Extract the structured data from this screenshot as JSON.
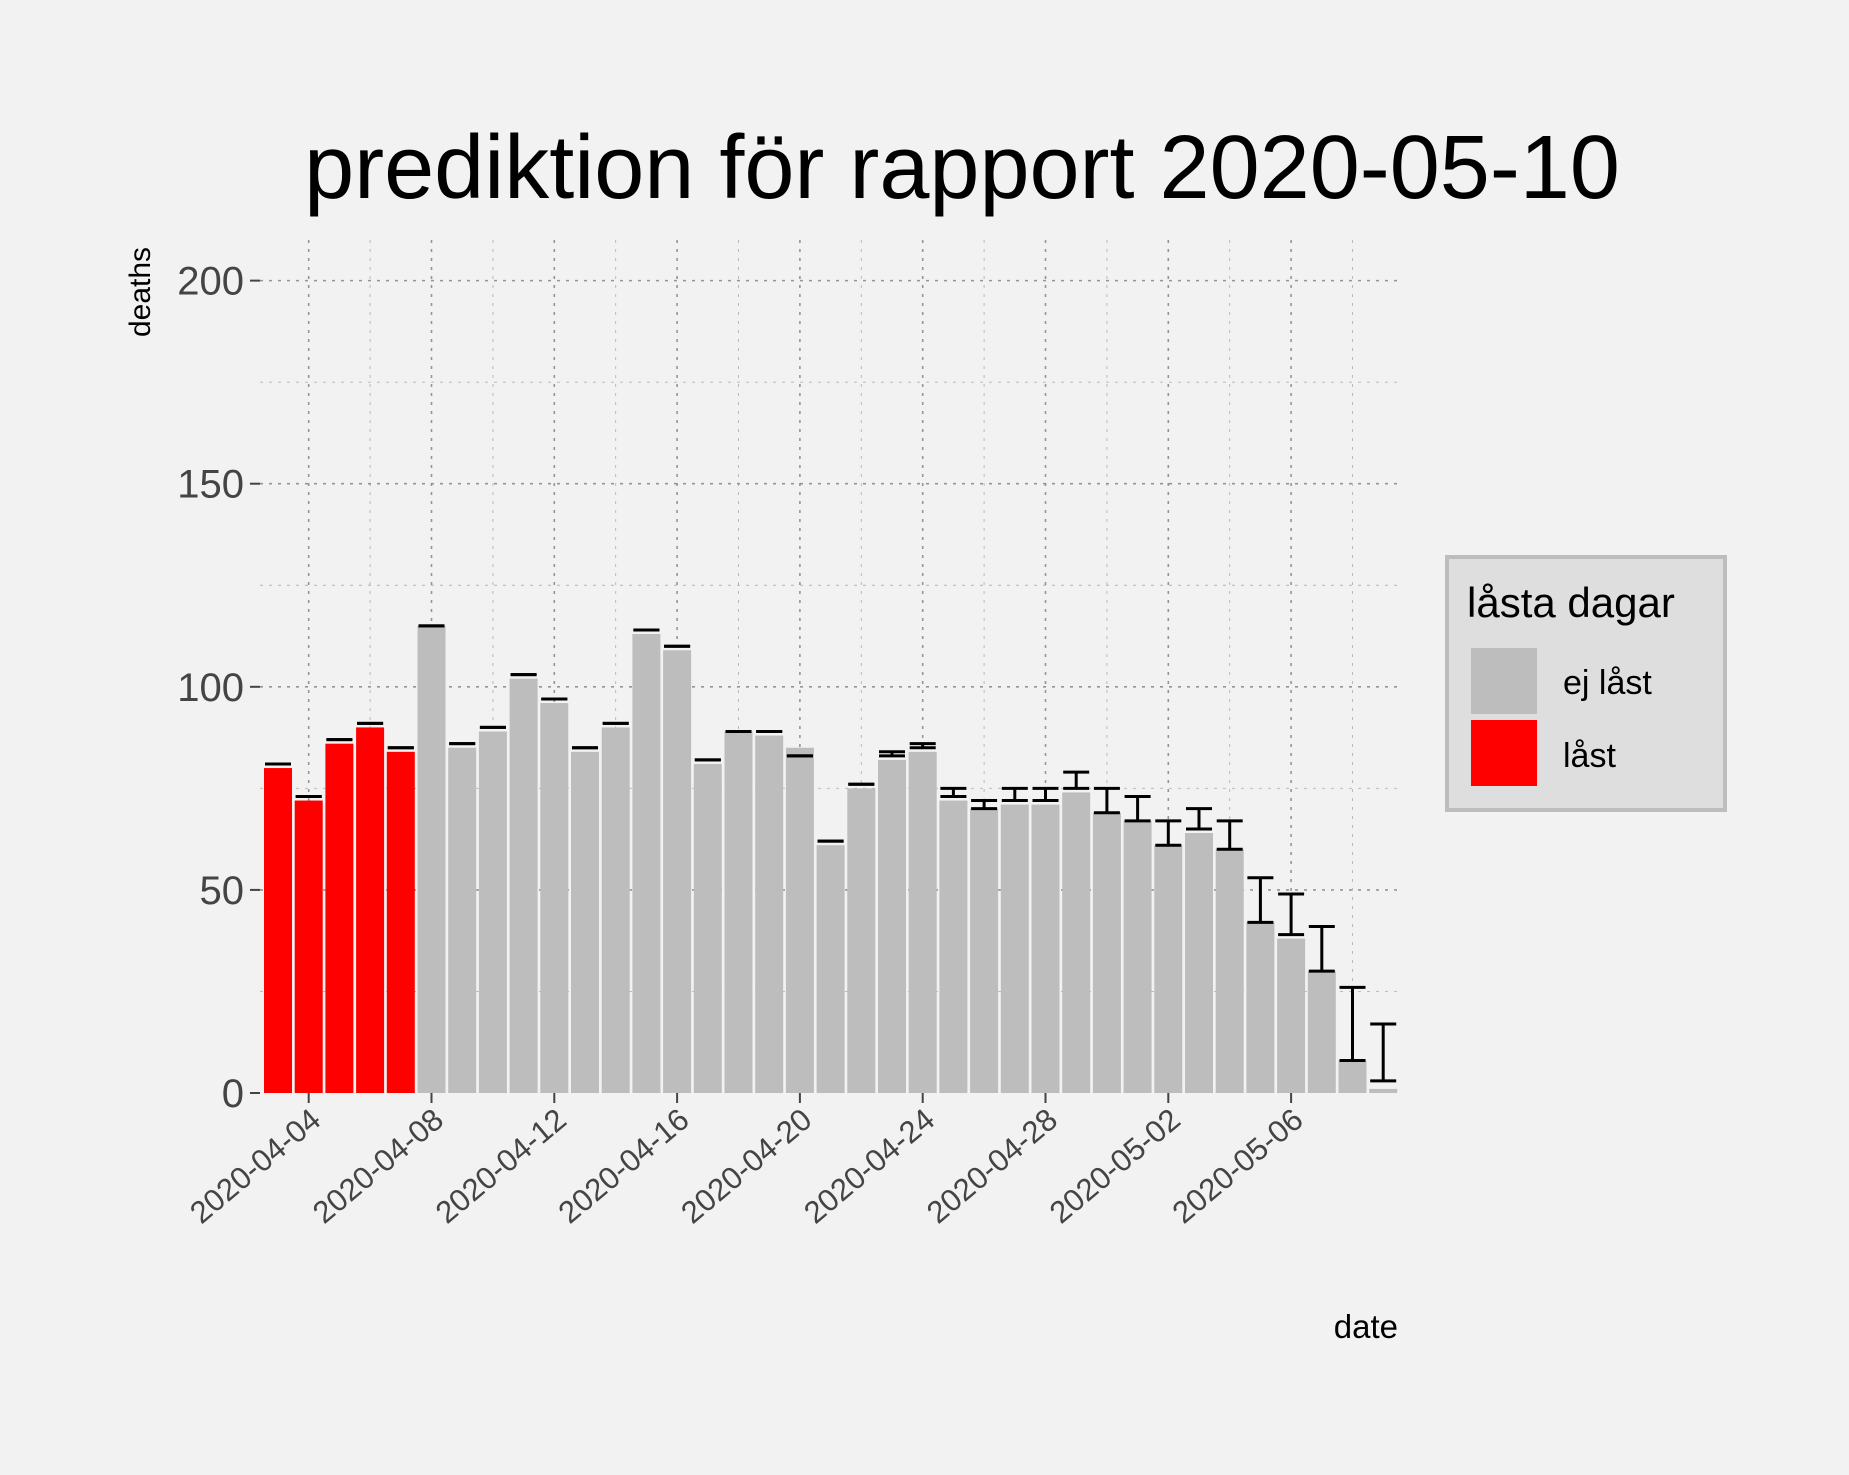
{
  "chart_data": {
    "type": "bar",
    "title": "prediktion för rapport 2020-05-10",
    "xlabel": "date",
    "ylabel": "deaths",
    "ylim": [
      0,
      210
    ],
    "y_ticks": [
      0,
      50,
      100,
      150,
      200
    ],
    "x_tick_labels": [
      "2020-04-04",
      "2020-04-08",
      "2020-04-12",
      "2020-04-16",
      "2020-04-20",
      "2020-04-24",
      "2020-04-28",
      "2020-05-02",
      "2020-05-06"
    ],
    "grid": true,
    "legend": {
      "title": "låsta dagar",
      "placement": "right",
      "entries": [
        {
          "label": "ej låst",
          "color": "#bdbdbd"
        },
        {
          "label": "låst",
          "color": "#ff0000"
        }
      ]
    },
    "categories": [
      "2020-04-03",
      "2020-04-04",
      "2020-04-05",
      "2020-04-06",
      "2020-04-07",
      "2020-04-08",
      "2020-04-09",
      "2020-04-10",
      "2020-04-11",
      "2020-04-12",
      "2020-04-13",
      "2020-04-14",
      "2020-04-15",
      "2020-04-16",
      "2020-04-17",
      "2020-04-18",
      "2020-04-19",
      "2020-04-20",
      "2020-04-21",
      "2020-04-22",
      "2020-04-23",
      "2020-04-24",
      "2020-04-25",
      "2020-04-26",
      "2020-04-27",
      "2020-04-28",
      "2020-04-29",
      "2020-04-30",
      "2020-05-01",
      "2020-05-02",
      "2020-05-03",
      "2020-05-04",
      "2020-05-05",
      "2020-05-06",
      "2020-05-07",
      "2020-05-08",
      "2020-05-09"
    ],
    "values": [
      80,
      72,
      86,
      90,
      84,
      115,
      85,
      89,
      102,
      96,
      84,
      90,
      113,
      109,
      81,
      89,
      88,
      85,
      61,
      75,
      82,
      84,
      72,
      70,
      71,
      71,
      74,
      69,
      67,
      61,
      64,
      60,
      42,
      38,
      30,
      8,
      1
    ],
    "locked": [
      true,
      true,
      true,
      true,
      true,
      false,
      false,
      false,
      false,
      false,
      false,
      false,
      false,
      false,
      false,
      false,
      false,
      false,
      false,
      false,
      false,
      false,
      false,
      false,
      false,
      false,
      false,
      false,
      false,
      false,
      false,
      false,
      false,
      false,
      false,
      false,
      false
    ],
    "error_low": [
      81,
      73,
      87,
      91,
      85,
      115,
      86,
      90,
      103,
      97,
      85,
      91,
      114,
      110,
      82,
      89,
      89,
      83,
      62,
      76,
      83,
      85,
      73,
      70,
      72,
      72,
      75,
      69,
      67,
      61,
      65,
      60,
      42,
      39,
      30,
      8,
      3
    ],
    "error_high": [
      81,
      73,
      87,
      91,
      85,
      115,
      86,
      90,
      103,
      97,
      85,
      91,
      114,
      110,
      82,
      89,
      89,
      83,
      62,
      76,
      84,
      86,
      75,
      72,
      75,
      75,
      79,
      75,
      73,
      67,
      70,
      67,
      53,
      49,
      41,
      26,
      17
    ],
    "colors": {
      "locked": "#ff0000",
      "unlocked": "#bdbdbd",
      "error_bar": "#000000",
      "grid": "#8c8c8c",
      "background": "#f2f2f2",
      "legend_bg": "#dedede",
      "legend_border": "#bdbdbd"
    }
  }
}
